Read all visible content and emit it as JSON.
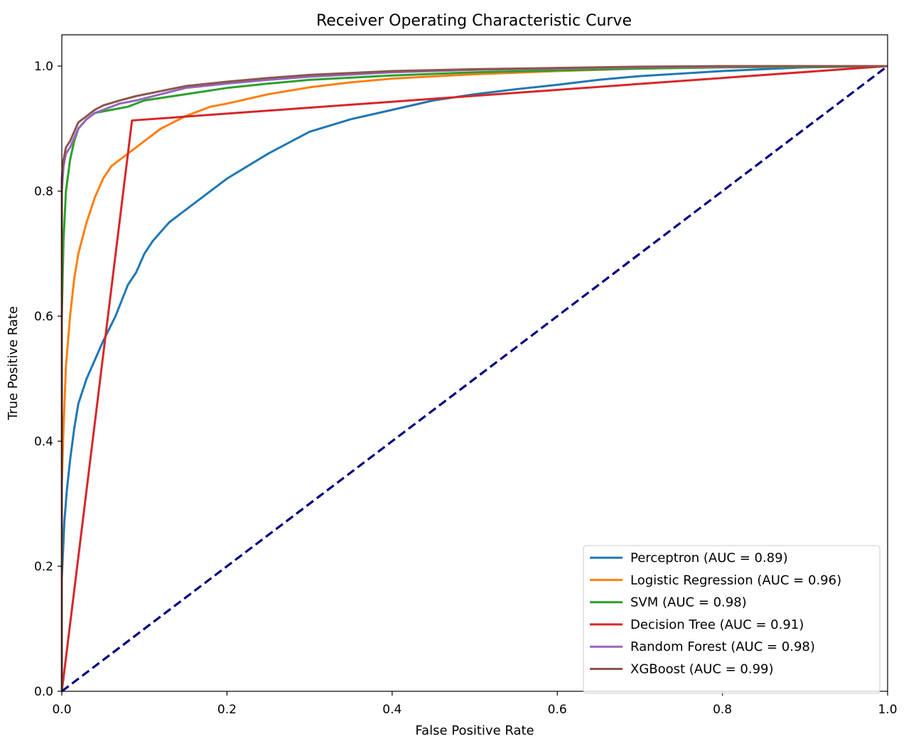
{
  "chart_data": {
    "type": "line",
    "title": "Receiver Operating Characteristic Curve",
    "xlabel": "False Positive Rate",
    "ylabel": "True Positive Rate",
    "xlim": [
      0.0,
      1.0
    ],
    "ylim": [
      0.0,
      1.05
    ],
    "xticks": [
      "0.0",
      "0.2",
      "0.4",
      "0.6",
      "0.8",
      "1.0"
    ],
    "yticks": [
      "0.0",
      "0.2",
      "0.4",
      "0.6",
      "0.8",
      "1.0"
    ],
    "grid": false,
    "legend_position": "lower-right",
    "series": [
      {
        "name": "Perceptron (AUC = 0.89)",
        "color": "#1f77b4",
        "x": [
          0,
          0,
          0.003,
          0.006,
          0.01,
          0.015,
          0.02,
          0.03,
          0.04,
          0.05,
          0.065,
          0.08,
          0.09,
          0.1,
          0.11,
          0.13,
          0.16,
          0.2,
          0.25,
          0.3,
          0.35,
          0.4,
          0.45,
          0.5,
          0.55,
          0.6,
          0.65,
          0.7,
          0.75,
          0.8,
          0.85,
          0.9,
          0.95,
          1.0
        ],
        "y": [
          0,
          0.18,
          0.27,
          0.32,
          0.37,
          0.42,
          0.46,
          0.5,
          0.53,
          0.56,
          0.6,
          0.65,
          0.67,
          0.7,
          0.72,
          0.75,
          0.78,
          0.82,
          0.86,
          0.895,
          0.915,
          0.93,
          0.945,
          0.955,
          0.963,
          0.97,
          0.978,
          0.984,
          0.988,
          0.992,
          0.995,
          0.998,
          0.999,
          1.0
        ]
      },
      {
        "name": "Logistic Regression (AUC = 0.96)",
        "color": "#ff7f0e",
        "x": [
          0,
          0,
          0.002,
          0.005,
          0.01,
          0.015,
          0.02,
          0.03,
          0.04,
          0.05,
          0.06,
          0.08,
          0.1,
          0.12,
          0.15,
          0.18,
          0.2,
          0.25,
          0.3,
          0.35,
          0.4,
          0.5,
          0.6,
          0.7,
          0.8,
          0.9,
          1.0
        ],
        "y": [
          0,
          0.33,
          0.42,
          0.52,
          0.6,
          0.66,
          0.7,
          0.75,
          0.79,
          0.82,
          0.84,
          0.86,
          0.88,
          0.9,
          0.92,
          0.935,
          0.94,
          0.955,
          0.966,
          0.974,
          0.98,
          0.987,
          0.992,
          0.996,
          0.998,
          0.999,
          1.0
        ]
      },
      {
        "name": "SVM (AUC = 0.98)",
        "color": "#2ca02c",
        "x": [
          0,
          0,
          0.002,
          0.005,
          0.01,
          0.015,
          0.02,
          0.03,
          0.04,
          0.06,
          0.08,
          0.1,
          0.15,
          0.2,
          0.25,
          0.3,
          0.4,
          0.5,
          0.6,
          0.7,
          0.8,
          0.9,
          1.0
        ],
        "y": [
          0,
          0.6,
          0.72,
          0.8,
          0.85,
          0.88,
          0.9,
          0.915,
          0.925,
          0.93,
          0.935,
          0.945,
          0.955,
          0.965,
          0.972,
          0.978,
          0.985,
          0.99,
          0.993,
          0.996,
          0.998,
          0.999,
          1.0
        ]
      },
      {
        "name": "Decision Tree (AUC = 0.91)",
        "color": "#d62728",
        "x": [
          0,
          0.085,
          1.0
        ],
        "y": [
          0,
          0.913,
          1.0
        ]
      },
      {
        "name": "Random Forest (AUC = 0.98)",
        "color": "#9467bd",
        "x": [
          0,
          0,
          0.002,
          0.005,
          0.01,
          0.015,
          0.02,
          0.03,
          0.04,
          0.05,
          0.07,
          0.09,
          0.12,
          0.15,
          0.2,
          0.25,
          0.3,
          0.4,
          0.5,
          0.6,
          0.7,
          0.8,
          0.9,
          1.0
        ],
        "y": [
          0,
          0.8,
          0.84,
          0.86,
          0.87,
          0.885,
          0.9,
          0.915,
          0.925,
          0.93,
          0.94,
          0.945,
          0.955,
          0.965,
          0.972,
          0.978,
          0.983,
          0.99,
          0.994,
          0.996,
          0.998,
          0.999,
          1.0,
          1.0
        ]
      },
      {
        "name": "XGBoost (AUC = 0.99)",
        "color": "#8c564b",
        "x": [
          0,
          0,
          0.002,
          0.005,
          0.01,
          0.015,
          0.02,
          0.03,
          0.04,
          0.05,
          0.07,
          0.09,
          0.12,
          0.15,
          0.2,
          0.25,
          0.3,
          0.4,
          0.5,
          0.6,
          0.7,
          0.8,
          0.9,
          1.0
        ],
        "y": [
          0,
          0.82,
          0.85,
          0.87,
          0.88,
          0.895,
          0.91,
          0.92,
          0.93,
          0.937,
          0.945,
          0.952,
          0.96,
          0.968,
          0.975,
          0.981,
          0.986,
          0.992,
          0.995,
          0.997,
          0.999,
          1.0,
          1.0,
          1.0
        ]
      },
      {
        "name": "",
        "color": "#000080",
        "dashed": true,
        "x": [
          0,
          1
        ],
        "y": [
          0,
          1
        ]
      }
    ]
  }
}
